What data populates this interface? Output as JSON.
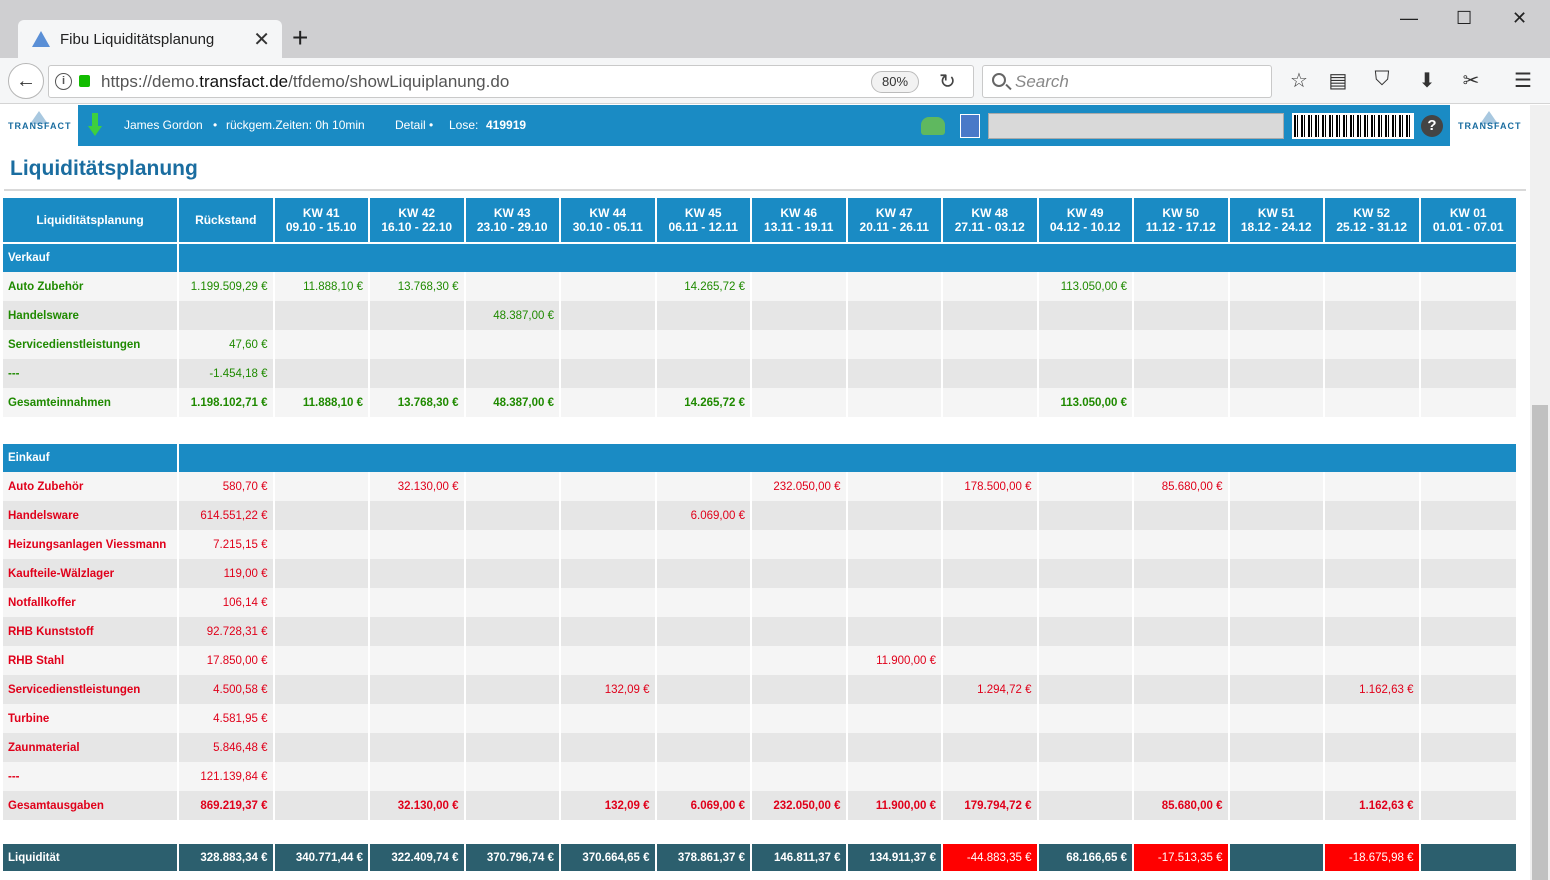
{
  "browser": {
    "tab_title": "Fibu Liquiditätsplanung",
    "url_prefix": "https://demo.",
    "url_domain": "transfact.de",
    "url_path": "/tfdemo/showLiquiplanung.do",
    "zoom": "80%",
    "search_placeholder": "Search"
  },
  "appbar": {
    "logo_text": "TRANSFACT",
    "user": "James Gordon",
    "times": "rückgem.Zeiten: 0h 10min",
    "detail": "Detail •",
    "lose_label": "Lose:",
    "lose_value": "419919"
  },
  "page": {
    "title": "Liquiditätsplanung"
  },
  "table": {
    "header": {
      "first": "Liquiditätsplanung",
      "rueckstand": "Rückstand",
      "weeks": [
        {
          "kw": "KW 41",
          "range": "09.10 - 15.10"
        },
        {
          "kw": "KW 42",
          "range": "16.10 - 22.10"
        },
        {
          "kw": "KW 43",
          "range": "23.10 - 29.10"
        },
        {
          "kw": "KW 44",
          "range": "30.10 - 05.11"
        },
        {
          "kw": "KW 45",
          "range": "06.11 - 12.11"
        },
        {
          "kw": "KW 46",
          "range": "13.11 - 19.11"
        },
        {
          "kw": "KW 47",
          "range": "20.11 - 26.11"
        },
        {
          "kw": "KW 48",
          "range": "27.11 - 03.12"
        },
        {
          "kw": "KW 49",
          "range": "04.12 - 10.12"
        },
        {
          "kw": "KW 50",
          "range": "11.12 - 17.12"
        },
        {
          "kw": "KW 51",
          "range": "18.12 - 24.12"
        },
        {
          "kw": "KW 52",
          "range": "25.12 - 31.12"
        },
        {
          "kw": "KW 01",
          "range": "01.01 - 07.01"
        }
      ]
    },
    "verkauf": {
      "label": "Verkauf",
      "rows": [
        {
          "name": "Auto Zubehör",
          "vals": [
            "1.199.509,29 €",
            "11.888,10 €",
            "13.768,30 €",
            "",
            "",
            "14.265,72 €",
            "",
            "",
            "",
            "113.050,00 €",
            "",
            "",
            "",
            ""
          ]
        },
        {
          "name": "Handelsware",
          "vals": [
            "",
            "",
            "",
            "48.387,00 €",
            "",
            "",
            "",
            "",
            "",
            "",
            "",
            "",
            "",
            ""
          ]
        },
        {
          "name": "Servicedienstleistungen",
          "vals": [
            "47,60 €",
            "",
            "",
            "",
            "",
            "",
            "",
            "",
            "",
            "",
            "",
            "",
            "",
            ""
          ]
        },
        {
          "name": "---",
          "vals": [
            "-1.454,18 €",
            "",
            "",
            "",
            "",
            "",
            "",
            "",
            "",
            "",
            "",
            "",
            "",
            ""
          ]
        }
      ],
      "total": {
        "name": "Gesamteinnahmen",
        "vals": [
          "1.198.102,71 €",
          "11.888,10 €",
          "13.768,30 €",
          "48.387,00 €",
          "",
          "14.265,72 €",
          "",
          "",
          "",
          "113.050,00 €",
          "",
          "",
          "",
          ""
        ]
      }
    },
    "einkauf": {
      "label": "Einkauf",
      "rows": [
        {
          "name": "Auto Zubehör",
          "vals": [
            "580,70 €",
            "",
            "32.130,00 €",
            "",
            "",
            "",
            "232.050,00 €",
            "",
            "178.500,00 €",
            "",
            "85.680,00 €",
            "",
            "",
            ""
          ]
        },
        {
          "name": "Handelsware",
          "vals": [
            "614.551,22 €",
            "",
            "",
            "",
            "",
            "6.069,00 €",
            "",
            "",
            "",
            "",
            "",
            "",
            "",
            ""
          ]
        },
        {
          "name": "Heizungsanlagen Viessmann",
          "vals": [
            "7.215,15 €",
            "",
            "",
            "",
            "",
            "",
            "",
            "",
            "",
            "",
            "",
            "",
            "",
            ""
          ]
        },
        {
          "name": "Kaufteile-Wälzlager",
          "vals": [
            "119,00 €",
            "",
            "",
            "",
            "",
            "",
            "",
            "",
            "",
            "",
            "",
            "",
            "",
            ""
          ]
        },
        {
          "name": "Notfallkoffer",
          "vals": [
            "106,14 €",
            "",
            "",
            "",
            "",
            "",
            "",
            "",
            "",
            "",
            "",
            "",
            "",
            ""
          ]
        },
        {
          "name": "RHB Kunststoff",
          "vals": [
            "92.728,31 €",
            "",
            "",
            "",
            "",
            "",
            "",
            "",
            "",
            "",
            "",
            "",
            "",
            ""
          ]
        },
        {
          "name": "RHB Stahl",
          "vals": [
            "17.850,00 €",
            "",
            "",
            "",
            "",
            "",
            "",
            "11.900,00 €",
            "",
            "",
            "",
            "",
            "",
            ""
          ]
        },
        {
          "name": "Servicedienstleistungen",
          "vals": [
            "4.500,58 €",
            "",
            "",
            "",
            "132,09 €",
            "",
            "",
            "",
            "1.294,72 €",
            "",
            "",
            "",
            "1.162,63 €",
            ""
          ]
        },
        {
          "name": "Turbine",
          "vals": [
            "4.581,95 €",
            "",
            "",
            "",
            "",
            "",
            "",
            "",
            "",
            "",
            "",
            "",
            "",
            ""
          ]
        },
        {
          "name": "Zaunmaterial",
          "vals": [
            "5.846,48 €",
            "",
            "",
            "",
            "",
            "",
            "",
            "",
            "",
            "",
            "",
            "",
            "",
            ""
          ]
        },
        {
          "name": "---",
          "vals": [
            "121.139,84 €",
            "",
            "",
            "",
            "",
            "",
            "",
            "",
            "",
            "",
            "",
            "",
            "",
            ""
          ]
        }
      ],
      "total": {
        "name": "Gesamtausgaben",
        "vals": [
          "869.219,37 €",
          "",
          "32.130,00 €",
          "",
          "132,09 €",
          "6.069,00 €",
          "232.050,00 €",
          "11.900,00 €",
          "179.794,72 €",
          "",
          "85.680,00 €",
          "",
          "1.162,63 €",
          ""
        ]
      }
    },
    "liquiditaet": {
      "name": "Liquidität",
      "vals": [
        "328.883,34 €",
        "340.771,44 €",
        "322.409,74 €",
        "370.796,74 €",
        "370.664,65 €",
        "378.861,37 €",
        "146.811,37 €",
        "134.911,37 €",
        "-44.883,35 €",
        "68.166,65 €",
        "-17.513,35 €",
        "",
        "-18.675,98 €",
        ""
      ],
      "negative_color": "#ff0000"
    }
  }
}
